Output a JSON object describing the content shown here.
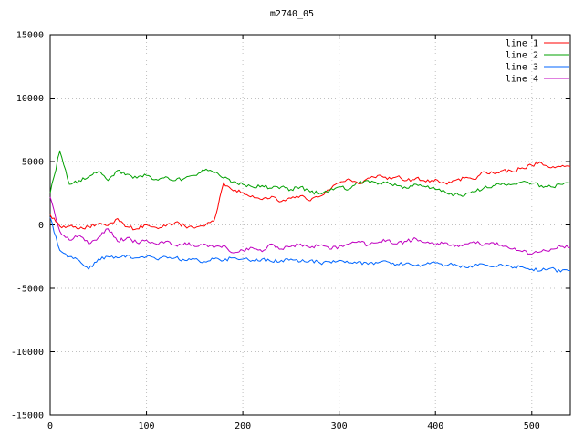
{
  "chart_data": {
    "type": "line",
    "title": "m2740_05",
    "xlabel": "",
    "ylabel": "",
    "xlim": [
      0,
      540
    ],
    "ylim": [
      -15000,
      15000
    ],
    "x_ticks": [
      0,
      100,
      200,
      300,
      400,
      500
    ],
    "y_ticks": [
      -15000,
      -10000,
      -5000,
      0,
      5000,
      10000,
      15000
    ],
    "grid": true,
    "legend_position": "top-right",
    "colors": {
      "axis": "#000000",
      "grid": "#c0c0c0",
      "background": "#ffffff"
    },
    "x_start": 0,
    "x_step": 10,
    "visual_noise": 140,
    "series": [
      {
        "name": "line 1",
        "color": "#ff0000",
        "values": [
          800,
          -100,
          -100,
          -300,
          -150,
          100,
          -50,
          500,
          -150,
          -300,
          0,
          -200,
          -100,
          200,
          -100,
          -250,
          -100,
          300,
          3300,
          2700,
          2550,
          2300,
          2000,
          2250,
          1850,
          2100,
          2300,
          1900,
          2250,
          2750,
          3300,
          3650,
          3250,
          3700,
          3900,
          3600,
          3800,
          3500,
          3700,
          3400,
          3600,
          3300,
          3500,
          3700,
          3600,
          4200,
          4100,
          4300,
          4200,
          4500,
          4700,
          4900,
          4500,
          4600,
          4600
        ]
      },
      {
        "name": "line 2",
        "color": "#00a000",
        "values": [
          2500,
          5800,
          3200,
          3500,
          3800,
          4200,
          3500,
          4300,
          4000,
          3700,
          3900,
          3600,
          3800,
          3500,
          3700,
          3900,
          4300,
          4100,
          3700,
          3400,
          3200,
          3000,
          3100,
          2900,
          3000,
          2800,
          3000,
          2600,
          2500,
          2700,
          3000,
          2800,
          3300,
          3500,
          3200,
          3400,
          3100,
          2900,
          3200,
          3000,
          2800,
          2600,
          2400,
          2300,
          2600,
          2900,
          3100,
          3300,
          3200,
          3400,
          3300,
          3100,
          3000,
          3200,
          3300
        ]
      },
      {
        "name": "line 3",
        "color": "#0066ff",
        "values": [
          600,
          -2000,
          -2500,
          -2800,
          -3500,
          -2700,
          -2500,
          -2600,
          -2400,
          -2600,
          -2500,
          -2700,
          -2500,
          -2600,
          -2800,
          -2700,
          -2900,
          -2700,
          -2800,
          -2600,
          -2700,
          -2800,
          -2700,
          -2900,
          -2800,
          -2700,
          -2900,
          -2800,
          -3000,
          -2900,
          -2800,
          -3000,
          -2900,
          -3100,
          -3000,
          -2900,
          -3100,
          -3000,
          -3200,
          -3100,
          -3000,
          -3200,
          -3100,
          -3300,
          -3200,
          -3100,
          -3300,
          -3200,
          -3400,
          -3300,
          -3500,
          -3600,
          -3400,
          -3700,
          -3600
        ]
      },
      {
        "name": "line 4",
        "color": "#c000c0",
        "values": [
          2200,
          -500,
          -1200,
          -800,
          -1500,
          -1000,
          -300,
          -1300,
          -1000,
          -1400,
          -1200,
          -1500,
          -1300,
          -1600,
          -1400,
          -1700,
          -1500,
          -1800,
          -1600,
          -2200,
          -2000,
          -1800,
          -2100,
          -1500,
          -1900,
          -1700,
          -1500,
          -1800,
          -1600,
          -1900,
          -1700,
          -1500,
          -1300,
          -1600,
          -1400,
          -1200,
          -1500,
          -1300,
          -1100,
          -1400,
          -1600,
          -1400,
          -1700,
          -1500,
          -1300,
          -1600,
          -1400,
          -1700,
          -1900,
          -2100,
          -2300,
          -2100,
          -1900,
          -1700,
          -1800
        ]
      }
    ]
  }
}
